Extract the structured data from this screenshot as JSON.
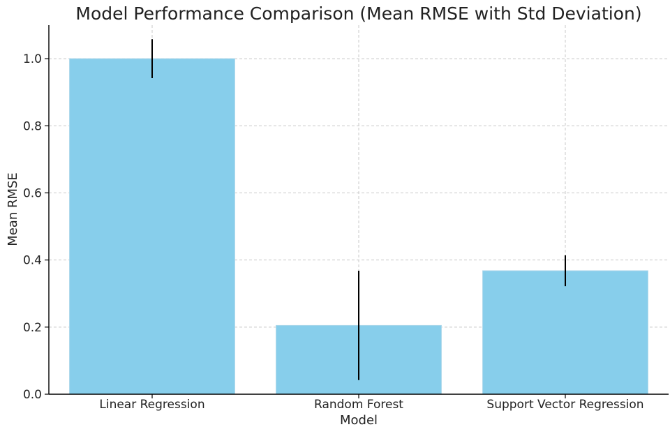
{
  "chart_data": {
    "type": "bar",
    "title": "Model Performance Comparison (Mean RMSE with Std Deviation)",
    "xlabel": "Model",
    "ylabel": "Mean RMSE",
    "categories": [
      "Linear Regression",
      "Random Forest",
      "Support Vector Regression"
    ],
    "values": [
      1.0,
      0.205,
      0.368
    ],
    "error": [
      0.058,
      0.163,
      0.046
    ],
    "ylim": [
      0,
      1.1
    ],
    "yticks": [
      0.0,
      0.2,
      0.4,
      0.6,
      0.8,
      1.0
    ],
    "ytick_labels": [
      "0.0",
      "0.2",
      "0.4",
      "0.6",
      "0.8",
      "1.0"
    ],
    "grid": true,
    "colors": {
      "bar": "#87ceeb",
      "error_bar": "#000000",
      "grid": "#c8c8c8"
    }
  }
}
